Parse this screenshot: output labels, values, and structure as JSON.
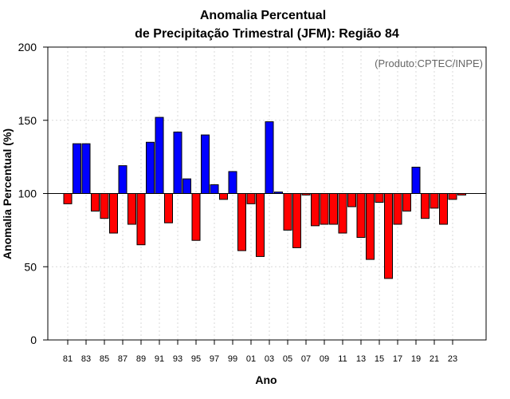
{
  "chart_data": {
    "type": "bar",
    "title_line1": "Anomalia Percentual",
    "title_line2": "de Precipitação Trimestral (JFM): Região 84",
    "xlabel": "Ano",
    "ylabel": "Anomalia Percentual (%)",
    "credit": "(Produto:CPTEC/INPE)",
    "ylim": [
      0,
      200
    ],
    "yticks": [
      0,
      50,
      100,
      150,
      200
    ],
    "baseline": 100,
    "colors": {
      "above": "#0000ff",
      "below": "#ff0000"
    },
    "categories": [
      "81",
      "82",
      "83",
      "84",
      "85",
      "86",
      "87",
      "88",
      "89",
      "90",
      "91",
      "92",
      "93",
      "94",
      "95",
      "96",
      "97",
      "98",
      "99",
      "00",
      "01",
      "02",
      "03",
      "04",
      "05",
      "06",
      "07",
      "08",
      "09",
      "10",
      "11",
      "12",
      "13",
      "14",
      "15",
      "16",
      "17",
      "18",
      "19",
      "20",
      "21",
      "22",
      "23",
      "24"
    ],
    "xtick_labels": [
      "81",
      "83",
      "85",
      "87",
      "89",
      "91",
      "93",
      "95",
      "97",
      "99",
      "01",
      "03",
      "05",
      "07",
      "09",
      "11",
      "13",
      "15",
      "17",
      "19",
      "21",
      "23"
    ],
    "values": [
      93,
      134,
      134,
      88,
      83,
      73,
      119,
      79,
      65,
      135,
      152,
      80,
      142,
      110,
      68,
      140,
      106,
      96,
      115,
      61,
      93,
      57,
      149,
      101,
      75,
      63,
      99,
      78,
      79,
      79,
      73,
      91,
      70,
      55,
      94,
      42,
      79,
      88,
      118,
      83,
      90,
      79,
      96,
      99
    ]
  }
}
